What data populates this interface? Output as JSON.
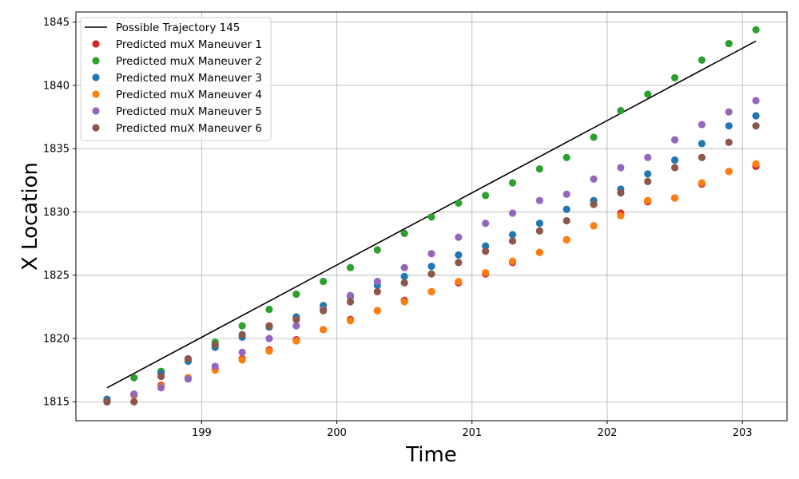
{
  "chart_data": {
    "type": "scatter",
    "title": "",
    "xlabel": "Time",
    "ylabel": "X Location",
    "xlim": [
      198.07,
      203.33
    ],
    "ylim": [
      1813.5,
      1845.8
    ],
    "xticks": [
      199,
      200,
      201,
      202,
      203
    ],
    "yticks": [
      1815,
      1820,
      1825,
      1830,
      1835,
      1840,
      1845
    ],
    "grid": true,
    "legend_position": "top-left",
    "line": {
      "name": "Possible Trajectory 145",
      "color": "#000000",
      "x": [
        198.3,
        203.1
      ],
      "y": [
        1816.1,
        1843.5
      ]
    },
    "series": [
      {
        "name": "Predicted muX Maneuver 1",
        "color": "#d62728",
        "x": [
          198.3,
          198.5,
          198.7,
          198.9,
          199.1,
          199.3,
          199.5,
          199.7,
          199.9,
          200.1,
          200.3,
          200.5,
          200.7,
          200.9,
          201.1,
          201.3,
          201.5,
          201.7,
          201.9,
          202.1,
          202.3,
          202.5,
          202.7,
          202.9,
          203.1
        ],
        "y": [
          1815.0,
          1815.6,
          1816.3,
          1816.9,
          1817.6,
          1818.4,
          1819.1,
          1819.9,
          1820.7,
          1821.5,
          1822.2,
          1823.0,
          1823.7,
          1824.4,
          1825.1,
          1826.0,
          1826.8,
          1827.8,
          1828.9,
          1829.9,
          1830.8,
          1831.1,
          1832.2,
          1833.2,
          1833.6
        ]
      },
      {
        "name": "Predicted muX Maneuver 2",
        "color": "#2ca02c",
        "x": [
          198.3,
          198.5,
          198.7,
          198.9,
          199.1,
          199.3,
          199.5,
          199.7,
          199.9,
          200.1,
          200.3,
          200.5,
          200.7,
          200.9,
          201.1,
          201.3,
          201.5,
          201.7,
          201.9,
          202.1,
          202.3,
          202.5,
          202.7,
          202.9,
          203.1
        ],
        "y": [
          1815.1,
          1816.9,
          1817.4,
          1818.3,
          1819.7,
          1821.0,
          1822.3,
          1823.5,
          1824.5,
          1825.6,
          1827.0,
          1828.3,
          1829.6,
          1830.7,
          1831.3,
          1832.3,
          1833.4,
          1834.3,
          1835.9,
          1838.0,
          1839.3,
          1840.6,
          1842.0,
          1843.3,
          1844.4
        ]
      },
      {
        "name": "Predicted muX Maneuver 3",
        "color": "#1f77b4",
        "x": [
          198.3,
          198.5,
          198.7,
          198.9,
          199.1,
          199.3,
          199.5,
          199.7,
          199.9,
          200.1,
          200.3,
          200.5,
          200.7,
          200.9,
          201.1,
          201.3,
          201.5,
          201.7,
          201.9,
          202.1,
          202.3,
          202.5,
          202.7,
          202.9,
          203.1
        ],
        "y": [
          1815.2,
          1815.5,
          1817.2,
          1818.2,
          1819.3,
          1820.1,
          1820.9,
          1821.7,
          1822.6,
          1823.3,
          1824.2,
          1824.9,
          1825.7,
          1826.6,
          1827.3,
          1828.2,
          1829.1,
          1830.2,
          1830.9,
          1831.8,
          1833.0,
          1834.1,
          1835.4,
          1836.8,
          1837.6
        ]
      },
      {
        "name": "Predicted muX Maneuver 4",
        "color": "#ff7f0e",
        "x": [
          198.3,
          198.5,
          198.7,
          198.9,
          199.1,
          199.3,
          199.5,
          199.7,
          199.9,
          200.1,
          200.3,
          200.5,
          200.7,
          200.9,
          201.1,
          201.3,
          201.5,
          201.7,
          201.9,
          202.1,
          202.3,
          202.5,
          202.7,
          202.9,
          203.1
        ],
        "y": [
          1815.0,
          1815.5,
          1816.2,
          1816.9,
          1817.5,
          1818.3,
          1819.0,
          1819.8,
          1820.7,
          1821.4,
          1822.2,
          1822.9,
          1823.7,
          1824.5,
          1825.2,
          1826.1,
          1826.8,
          1827.8,
          1828.9,
          1829.7,
          1830.9,
          1831.1,
          1832.3,
          1833.2,
          1833.8
        ]
      },
      {
        "name": "Predicted muX Maneuver 5",
        "color": "#9467bd",
        "x": [
          198.3,
          198.5,
          198.7,
          198.9,
          199.1,
          199.3,
          199.5,
          199.7,
          199.9,
          200.1,
          200.3,
          200.5,
          200.7,
          200.9,
          201.1,
          201.3,
          201.5,
          201.7,
          201.9,
          202.1,
          202.3,
          202.5,
          202.7,
          202.9,
          203.1
        ],
        "y": [
          1815.0,
          1815.6,
          1816.1,
          1816.8,
          1817.8,
          1818.9,
          1820.0,
          1821.0,
          1822.3,
          1823.4,
          1824.5,
          1825.6,
          1826.7,
          1828.0,
          1829.1,
          1829.9,
          1830.9,
          1831.4,
          1832.6,
          1833.5,
          1834.3,
          1835.7,
          1836.9,
          1837.9,
          1838.8
        ]
      },
      {
        "name": "Predicted muX Maneuver 6",
        "color": "#8c564b",
        "x": [
          198.3,
          198.5,
          198.7,
          198.9,
          199.1,
          199.3,
          199.5,
          199.7,
          199.9,
          200.1,
          200.3,
          200.5,
          200.7,
          200.9,
          201.1,
          201.3,
          201.5,
          201.7,
          201.9,
          202.1,
          202.3,
          202.5,
          202.7,
          202.9,
          203.1
        ],
        "y": [
          1815.0,
          1815.0,
          1817.0,
          1818.4,
          1819.5,
          1820.3,
          1821.0,
          1821.5,
          1822.2,
          1822.9,
          1823.7,
          1824.4,
          1825.1,
          1826.0,
          1826.9,
          1827.7,
          1828.5,
          1829.3,
          1830.6,
          1831.5,
          1832.4,
          1833.5,
          1834.3,
          1835.5,
          1836.8
        ]
      }
    ]
  }
}
